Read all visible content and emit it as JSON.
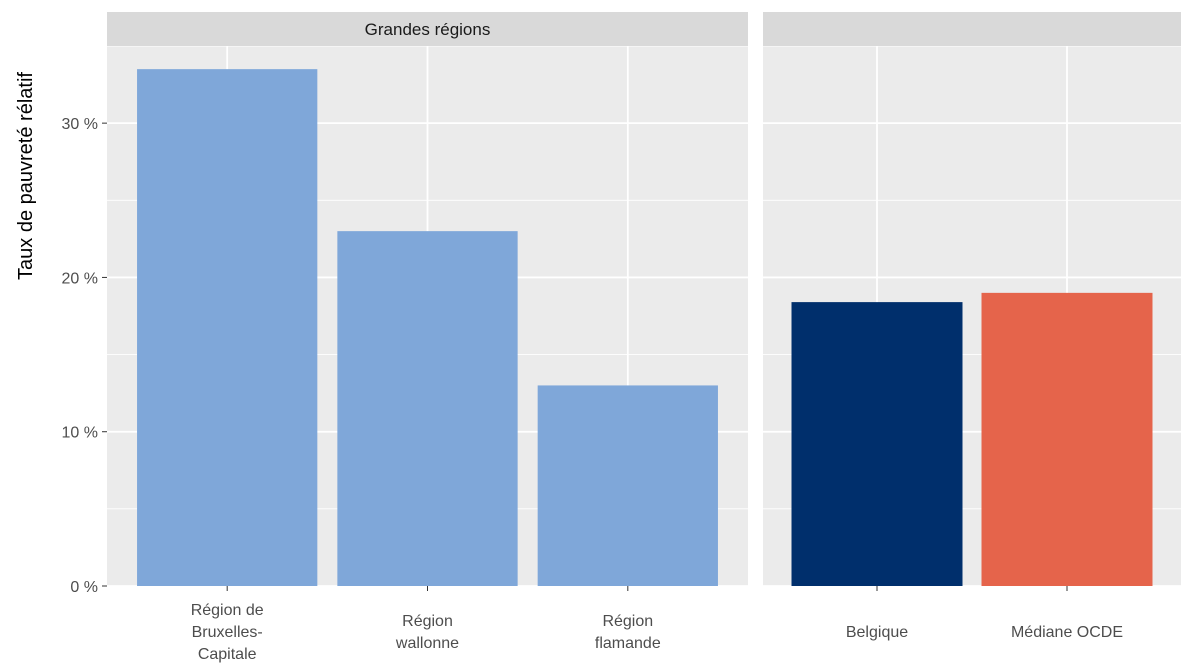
{
  "chart_data": {
    "type": "bar",
    "ylabel": "Taux de pauvreté rélatif",
    "ylim": [
      0,
      35
    ],
    "y_ticks": [
      {
        "value": 0,
        "label": "0 %"
      },
      {
        "value": 10,
        "label": "10 %"
      },
      {
        "value": 20,
        "label": "20 %"
      },
      {
        "value": 30,
        "label": "30 %"
      }
    ],
    "grid": true,
    "panels": [
      {
        "strip": "Grandes régions",
        "categories": [
          {
            "label_lines": [
              "Région de",
              "Bruxelles-",
              "Capitale"
            ],
            "value": 33.5,
            "color": "#7fa7d9"
          },
          {
            "label_lines": [
              "Région",
              "wallonne"
            ],
            "value": 23.0,
            "color": "#7fa7d9"
          },
          {
            "label_lines": [
              "Région",
              "flamande"
            ],
            "value": 13.0,
            "color": "#7fa7d9"
          }
        ]
      },
      {
        "strip": "",
        "categories": [
          {
            "label_lines": [
              "Belgique"
            ],
            "value": 18.4,
            "color": "#002f6c"
          },
          {
            "label_lines": [
              "Médiane OCDE"
            ],
            "value": 19.0,
            "color": "#e5644b"
          }
        ]
      }
    ]
  },
  "colors": {
    "panel_background": "#ebebeb",
    "strip_background": "#d9d9d9",
    "grid_line": "#ffffff"
  }
}
